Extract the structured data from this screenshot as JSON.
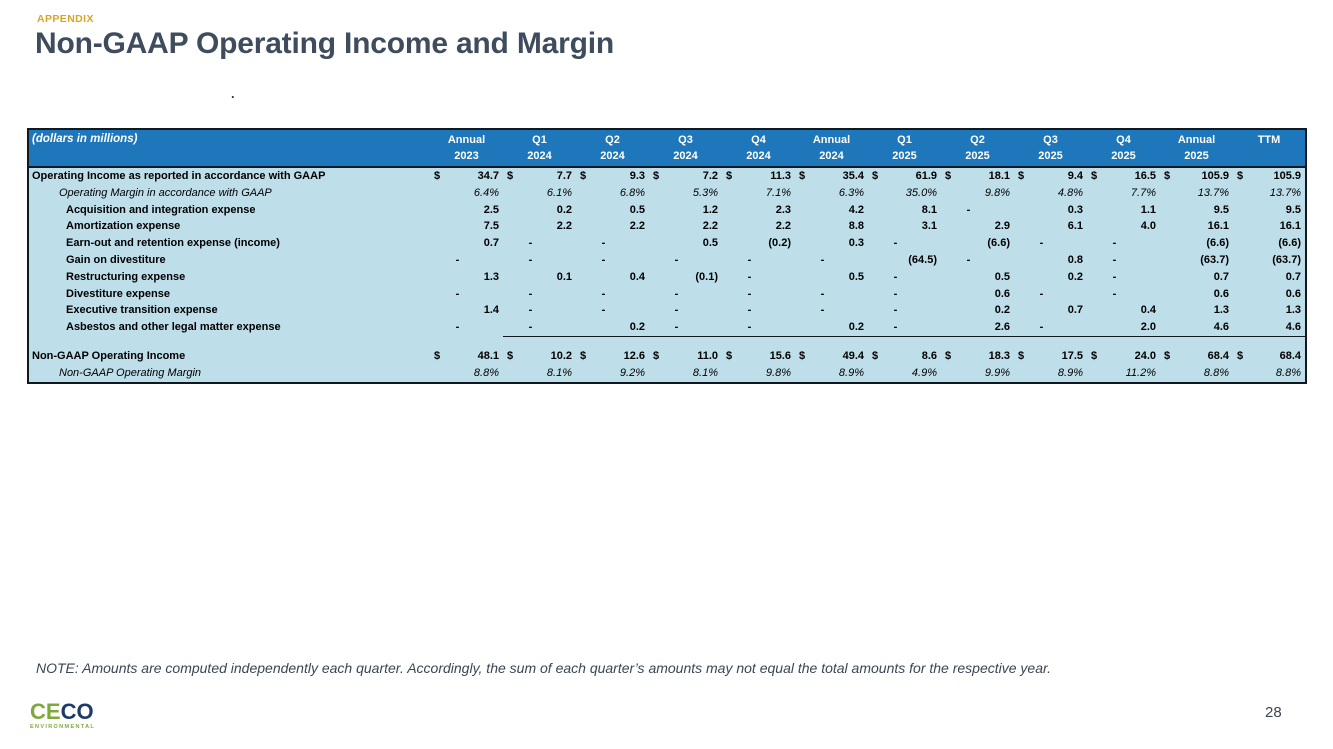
{
  "slide": {
    "eyebrow": "APPENDIX",
    "title": "Non-GAAP Operating Income and Margin",
    "stray_mark": ".",
    "note": "NOTE: Amounts are computed independently each quarter. Accordingly, the sum of each quarter’s amounts may not equal the total amounts for the respective year.",
    "page_number": "28"
  },
  "logo": {
    "letters": [
      {
        "char": "C",
        "color": "#7FA83C"
      },
      {
        "char": "E",
        "color": "#7FA83C"
      },
      {
        "char": "C",
        "color": "#1F3A67"
      },
      {
        "char": "O",
        "color": "#1F3A67"
      }
    ],
    "subtext": "ENVIRONMENTAL",
    "subtext_color": "#7FA83C"
  },
  "colors": {
    "header_bg": "#1E76BB",
    "body_bg": "#BEDEE9",
    "border": "#101820",
    "eyebrow": "#D9A524",
    "title_text": "#3E4C5E",
    "note_text": "#3A4654"
  },
  "table": {
    "dollar": "$",
    "corner_label": "(dollars in millions)",
    "columns": [
      {
        "line1": "Annual",
        "line2": "2023"
      },
      {
        "line1": "Q1",
        "line2": "2024"
      },
      {
        "line1": "Q2",
        "line2": "2024"
      },
      {
        "line1": "Q3",
        "line2": "2024"
      },
      {
        "line1": "Q4",
        "line2": "2024"
      },
      {
        "line1": "Annual",
        "line2": "2024"
      },
      {
        "line1": "Q1",
        "line2": "2025"
      },
      {
        "line1": "Q2",
        "line2": "2025"
      },
      {
        "line1": "Q3",
        "line2": "2025"
      },
      {
        "line1": "Q4",
        "line2": "2025"
      },
      {
        "line1": "Annual",
        "line2": "2025"
      },
      {
        "line1": "",
        "line2": "TTM"
      }
    ],
    "rows": [
      {
        "label": "Operating Income as reported in accordance with GAAP",
        "style": "bold",
        "indent": 0,
        "dollar": true,
        "values": [
          "34.7",
          "7.7",
          "9.3",
          "7.2",
          "11.3",
          "35.4",
          "61.9",
          "18.1",
          "9.4",
          "16.5",
          "105.9",
          "105.9"
        ]
      },
      {
        "label": "Operating Margin in accordance with GAAP",
        "style": "italic",
        "indent": 1,
        "values": [
          "6.4%",
          "6.1%",
          "6.8%",
          "5.3%",
          "7.1%",
          "6.3%",
          "35.0%",
          "9.8%",
          "4.8%",
          "7.7%",
          "13.7%",
          "13.7%"
        ]
      },
      {
        "label": "Acquisition and integration expense",
        "style": "bold",
        "indent": 2,
        "values": [
          "2.5",
          "0.2",
          "0.5",
          "1.2",
          "2.3",
          "4.2",
          "8.1",
          "-",
          "0.3",
          "1.1",
          "9.5",
          "9.5"
        ]
      },
      {
        "label": "Amortization expense",
        "style": "bold",
        "indent": 2,
        "values": [
          "7.5",
          "2.2",
          "2.2",
          "2.2",
          "2.2",
          "8.8",
          "3.1",
          "2.9",
          "6.1",
          "4.0",
          "16.1",
          "16.1"
        ]
      },
      {
        "label": "Earn-out and retention expense (income)",
        "style": "bold",
        "indent": 2,
        "values": [
          "0.7",
          "-",
          "-",
          "0.5",
          "(0.2)",
          "0.3",
          "-",
          "(6.6)",
          "-",
          "-",
          "(6.6)",
          "(6.6)"
        ]
      },
      {
        "label": "Gain on divestiture",
        "style": "bold",
        "indent": 2,
        "values": [
          "-",
          "-",
          "-",
          "-",
          "-",
          "-",
          "(64.5)",
          "-",
          "0.8",
          "-",
          "(63.7)",
          "(63.7)"
        ]
      },
      {
        "label": "Restructuring expense",
        "style": "bold",
        "indent": 2,
        "values": [
          "1.3",
          "0.1",
          "0.4",
          "(0.1)",
          "-",
          "0.5",
          "-",
          "0.5",
          "0.2",
          "-",
          "0.7",
          "0.7"
        ]
      },
      {
        "label": "Divestiture expense",
        "style": "bold",
        "indent": 2,
        "values": [
          "-",
          "-",
          "-",
          "-",
          "-",
          "-",
          "-",
          "0.6",
          "-",
          "-",
          "0.6",
          "0.6"
        ]
      },
      {
        "label": "Executive transition expense",
        "style": "bold",
        "indent": 2,
        "values": [
          "1.4",
          "-",
          "-",
          "-",
          "-",
          "-",
          "-",
          "0.2",
          "0.7",
          "0.4",
          "1.3",
          "1.3"
        ]
      },
      {
        "label": "Asbestos and other legal matter expense",
        "style": "bold",
        "indent": 2,
        "sum_from": 1,
        "values": [
          "-",
          "-",
          "0.2",
          "-",
          "-",
          "0.2",
          "-",
          "2.6",
          "-",
          "2.0",
          "4.6",
          "4.6"
        ]
      },
      {
        "spacer": true
      },
      {
        "label": "Non-GAAP Operating Income",
        "style": "bold",
        "indent": 0,
        "dollar": true,
        "values": [
          "48.1",
          "10.2",
          "12.6",
          "11.0",
          "15.6",
          "49.4",
          "8.6",
          "18.3",
          "17.5",
          "24.0",
          "68.4",
          "68.4"
        ]
      },
      {
        "label": "Non-GAAP Operating Margin",
        "style": "italic",
        "indent": 1,
        "values": [
          "8.8%",
          "8.1%",
          "9.2%",
          "8.1%",
          "9.8%",
          "8.9%",
          "4.9%",
          "9.9%",
          "8.9%",
          "11.2%",
          "8.8%",
          "8.8%"
        ]
      }
    ]
  }
}
